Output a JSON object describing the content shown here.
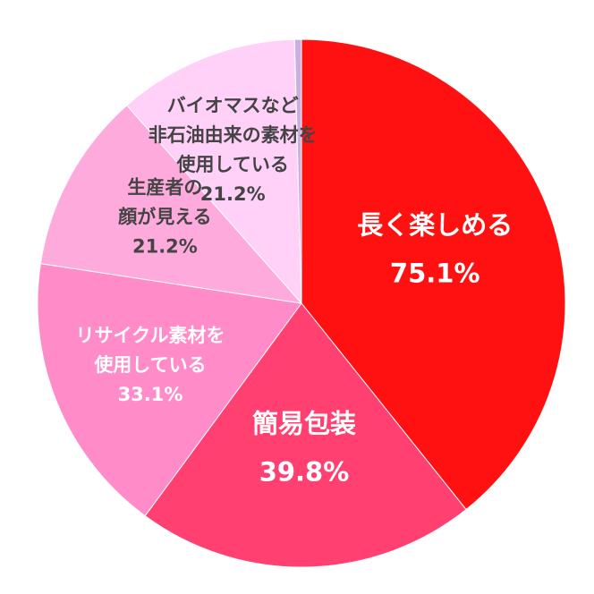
{
  "chart_data": {
    "type": "pie",
    "start_angle_deg": 0,
    "direction": "clockwise",
    "slices": [
      {
        "name": "長く楽しめる",
        "lines": [
          "長く楽しめる"
        ],
        "value": 75.1,
        "value_label": "75.1%",
        "color": "#ff1111",
        "label_color": "#ffffff"
      },
      {
        "name": "簡易包装",
        "lines": [
          "簡易包装"
        ],
        "value": 39.8,
        "value_label": "39.8%",
        "color": "#ff4070",
        "label_color": "#ffffff"
      },
      {
        "name": "リサイクル素材を使用している",
        "lines": [
          "リサイクル素材を",
          "使用している"
        ],
        "value": 33.1,
        "value_label": "33.1%",
        "color": "#ff8cc8",
        "label_color": "#ffffff"
      },
      {
        "name": "生産者の顔が見える",
        "lines": [
          "生産者の",
          "顔が見える"
        ],
        "value": 21.2,
        "value_label": "21.2%",
        "color": "#ffaadc",
        "label_color": "#444444"
      },
      {
        "name": "バイオマスなど非石油由来の素材を使用している",
        "lines": [
          "バイオマスなど",
          "非石油由来の素材を",
          "使用している"
        ],
        "value": 21.2,
        "value_label": "21.2%",
        "color": "#ffd0f8",
        "label_color": "#444444"
      },
      {
        "name": "",
        "lines": [],
        "value": 0.8,
        "value_label": "",
        "color": "#c9b0e0",
        "label_color": "#444444"
      }
    ]
  }
}
